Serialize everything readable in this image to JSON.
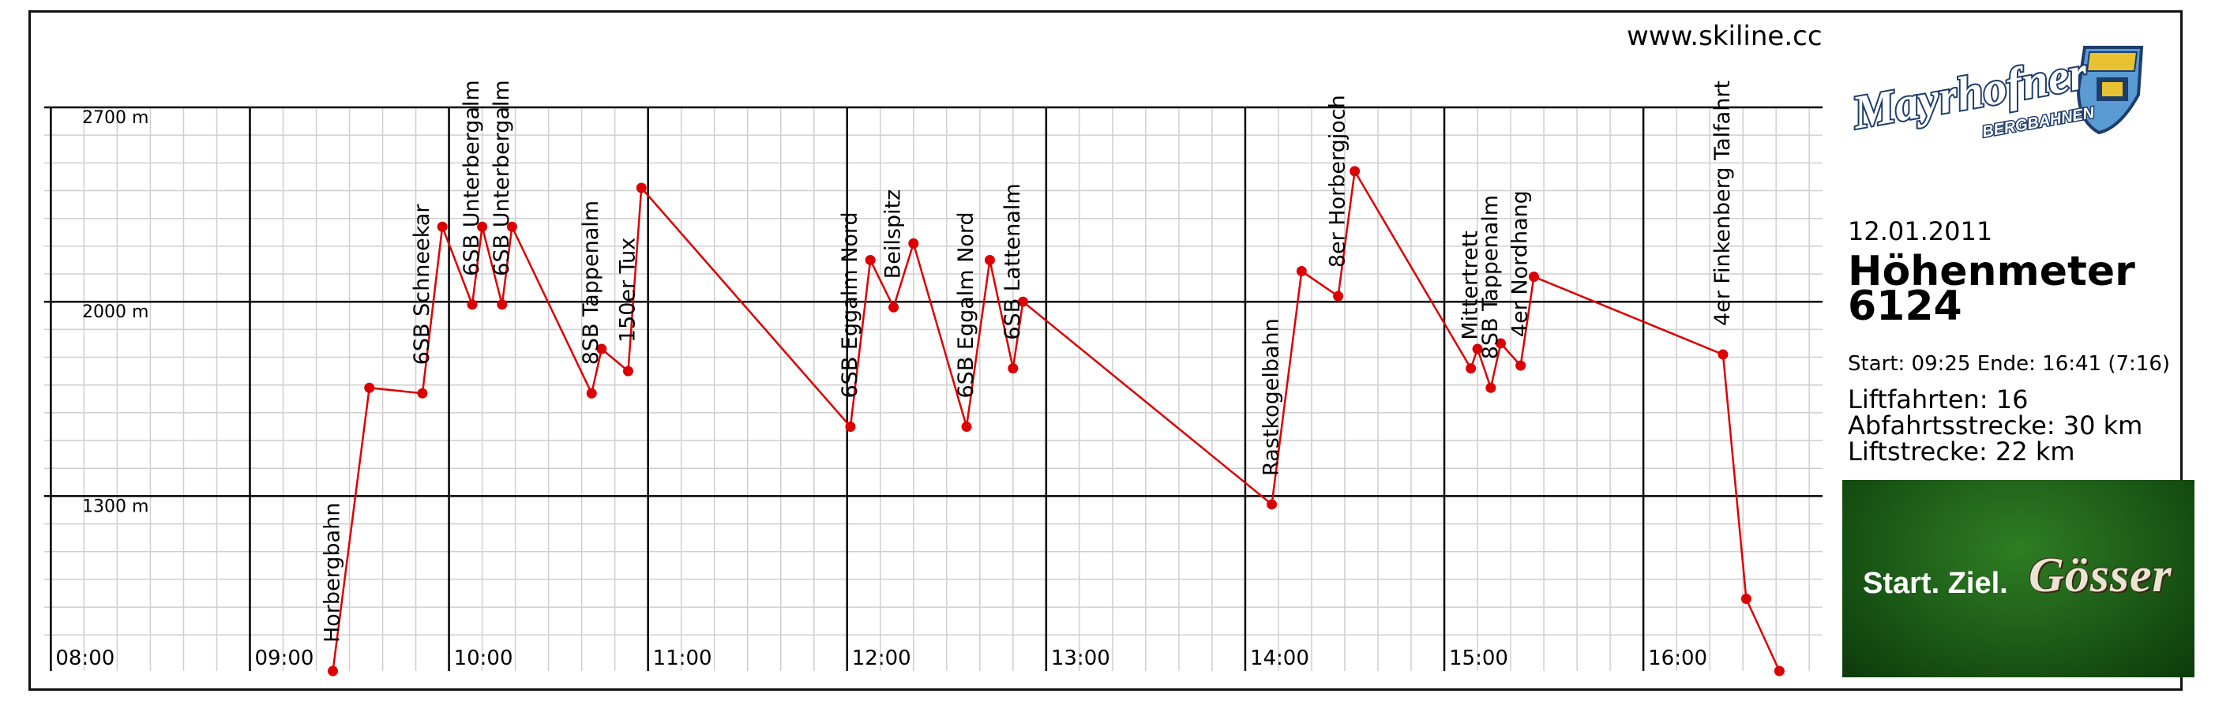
{
  "header": {
    "website": "www.skiline.cc"
  },
  "logo": {
    "brand_text": "Mayrhofner",
    "sub_text": "BERGBAHNEN"
  },
  "summary": {
    "date": "12.01.2011",
    "title": "Höhenmeter",
    "total": "6124",
    "times": "Start: 09:25 Ende: 16:41 (7:16)",
    "lift_rides": "Liftfahrten: 16",
    "descent_distance": "Abfahrtsstrecke: 30 km",
    "lift_distance": "Liftstrecke: 22 km"
  },
  "ad": {
    "slogan": "Start. Ziel.",
    "brand": "Gösser"
  },
  "colors": {
    "line": "#dd0000",
    "point": "#dd0000",
    "grid_minor": "#cfcfcf",
    "grid_major": "#000000"
  },
  "chart_data": {
    "type": "line",
    "title": "",
    "xlabel": "",
    "ylabel": "",
    "x_ticks": [
      "08:00",
      "09:00",
      "10:00",
      "11:00",
      "12:00",
      "13:00",
      "14:00",
      "15:00",
      "16:00"
    ],
    "y_ticks": [
      {
        "value": 2700,
        "label": "2700 m"
      },
      {
        "value": 2000,
        "label": "2000 m"
      },
      {
        "value": 1300,
        "label": "1300 m"
      }
    ],
    "xlim": [
      "07:58",
      "16:54"
    ],
    "ylim": [
      670,
      2700
    ],
    "grid": true,
    "series": [
      {
        "points": [
          {
            "x": "09:25",
            "y": 670
          },
          {
            "x": "09:36",
            "y": 1690
          },
          {
            "x": "09:52",
            "y": 1670
          },
          {
            "x": "09:58",
            "y": 2270
          },
          {
            "x": "10:07",
            "y": 1990
          },
          {
            "x": "10:10",
            "y": 2270
          },
          {
            "x": "10:16",
            "y": 1990
          },
          {
            "x": "10:19",
            "y": 2270
          },
          {
            "x": "10:43",
            "y": 1670
          },
          {
            "x": "10:46",
            "y": 1830
          },
          {
            "x": "10:54",
            "y": 1750
          },
          {
            "x": "10:58",
            "y": 2410
          },
          {
            "x": "12:01",
            "y": 1550
          },
          {
            "x": "12:07",
            "y": 2150
          },
          {
            "x": "12:14",
            "y": 1980
          },
          {
            "x": "12:20",
            "y": 2210
          },
          {
            "x": "12:36",
            "y": 1550
          },
          {
            "x": "12:43",
            "y": 2150
          },
          {
            "x": "12:50",
            "y": 1760
          },
          {
            "x": "12:53",
            "y": 2000
          },
          {
            "x": "14:08",
            "y": 1270
          },
          {
            "x": "14:17",
            "y": 2110
          },
          {
            "x": "14:28",
            "y": 2020
          },
          {
            "x": "14:33",
            "y": 2470
          },
          {
            "x": "15:08",
            "y": 1760
          },
          {
            "x": "15:10",
            "y": 1830
          },
          {
            "x": "15:14",
            "y": 1690
          },
          {
            "x": "15:17",
            "y": 1850
          },
          {
            "x": "15:23",
            "y": 1770
          },
          {
            "x": "15:27",
            "y": 2090
          },
          {
            "x": "16:24",
            "y": 1810
          },
          {
            "x": "16:31",
            "y": 930
          },
          {
            "x": "16:41",
            "y": 670
          }
        ]
      }
    ],
    "annotations": [
      {
        "text": "Horbergbahn",
        "x": "09:25"
      },
      {
        "text": "6SB Schneekar",
        "x": "09:52"
      },
      {
        "text": "6SB Unterbergalm",
        "x": "10:07"
      },
      {
        "text": "6SB Unterbergalm",
        "x": "10:16"
      },
      {
        "text": "8SB Tappenalm",
        "x": "10:43"
      },
      {
        "text": "150er Tux",
        "x": "10:54"
      },
      {
        "text": "6SB Eggalm Nord",
        "x": "12:01"
      },
      {
        "text": "Beilspitz",
        "x": "12:14"
      },
      {
        "text": "6SB Eggalm Nord",
        "x": "12:36"
      },
      {
        "text": "6SB Lattenalm",
        "x": "12:50"
      },
      {
        "text": "Rastkogelbahn",
        "x": "14:08"
      },
      {
        "text": "8er Horbergjoch",
        "x": "14:28"
      },
      {
        "text": "Mittertrett",
        "x": "15:08"
      },
      {
        "text": "8SB Tappenalm",
        "x": "15:14"
      },
      {
        "text": "4er Nordhang",
        "x": "15:23"
      },
      {
        "text": "4er Finkenberg Talfahrt",
        "x": "16:24"
      }
    ]
  }
}
